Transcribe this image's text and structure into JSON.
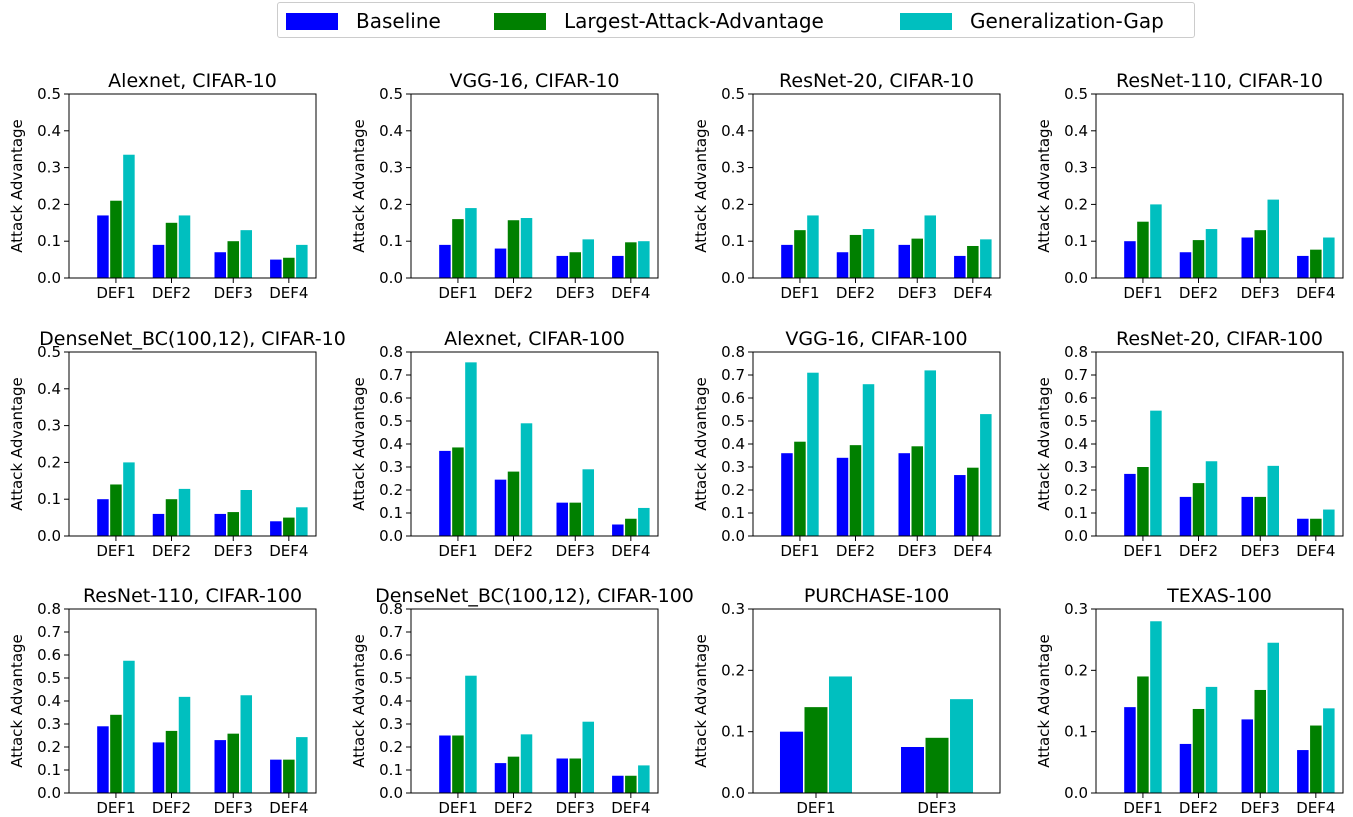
{
  "legend": {
    "items": [
      {
        "label": "Baseline",
        "color": "#0000ff"
      },
      {
        "label": "Largest-Attack-Advantage",
        "color": "#008000"
      },
      {
        "label": "Generalization-Gap",
        "color": "#00bfbf"
      }
    ]
  },
  "chart_data": [
    {
      "type": "bar",
      "title": "Alexnet, CIFAR-10",
      "ylabel": "Attack Advantage",
      "ylim": [
        0,
        0.5
      ],
      "yticks": [
        "0.0",
        "0.1",
        "0.2",
        "0.3",
        "0.4",
        "0.5"
      ],
      "categories": [
        "DEF1",
        "DEF2",
        "DEF3",
        "DEF4"
      ],
      "series": [
        {
          "name": "Baseline",
          "values": [
            0.17,
            0.09,
            0.07,
            0.05
          ]
        },
        {
          "name": "Largest-Attack-Advantage",
          "values": [
            0.21,
            0.15,
            0.1,
            0.055
          ]
        },
        {
          "name": "Generalization-Gap",
          "values": [
            0.335,
            0.17,
            0.13,
            0.09
          ]
        }
      ]
    },
    {
      "type": "bar",
      "title": "VGG-16, CIFAR-10",
      "ylabel": "Attack Advantage",
      "ylim": [
        0,
        0.5
      ],
      "yticks": [
        "0.0",
        "0.1",
        "0.2",
        "0.3",
        "0.4",
        "0.5"
      ],
      "categories": [
        "DEF1",
        "DEF2",
        "DEF3",
        "DEF4"
      ],
      "series": [
        {
          "name": "Baseline",
          "values": [
            0.09,
            0.08,
            0.06,
            0.06
          ]
        },
        {
          "name": "Largest-Attack-Advantage",
          "values": [
            0.16,
            0.157,
            0.07,
            0.097
          ]
        },
        {
          "name": "Generalization-Gap",
          "values": [
            0.19,
            0.163,
            0.105,
            0.1
          ]
        }
      ]
    },
    {
      "type": "bar",
      "title": "ResNet-20, CIFAR-10",
      "ylabel": "Attack Advantage",
      "ylim": [
        0,
        0.5
      ],
      "yticks": [
        "0.0",
        "0.1",
        "0.2",
        "0.3",
        "0.4",
        "0.5"
      ],
      "categories": [
        "DEF1",
        "DEF2",
        "DEF3",
        "DEF4"
      ],
      "series": [
        {
          "name": "Baseline",
          "values": [
            0.09,
            0.07,
            0.09,
            0.06
          ]
        },
        {
          "name": "Largest-Attack-Advantage",
          "values": [
            0.13,
            0.117,
            0.107,
            0.087
          ]
        },
        {
          "name": "Generalization-Gap",
          "values": [
            0.17,
            0.133,
            0.17,
            0.105
          ]
        }
      ]
    },
    {
      "type": "bar",
      "title": "ResNet-110, CIFAR-10",
      "ylabel": "Attack Advantage",
      "ylim": [
        0,
        0.5
      ],
      "yticks": [
        "0.0",
        "0.1",
        "0.2",
        "0.3",
        "0.4",
        "0.5"
      ],
      "categories": [
        "DEF1",
        "DEF2",
        "DEF3",
        "DEF4"
      ],
      "series": [
        {
          "name": "Baseline",
          "values": [
            0.1,
            0.07,
            0.11,
            0.06
          ]
        },
        {
          "name": "Largest-Attack-Advantage",
          "values": [
            0.153,
            0.103,
            0.13,
            0.077
          ]
        },
        {
          "name": "Generalization-Gap",
          "values": [
            0.2,
            0.133,
            0.213,
            0.11
          ]
        }
      ]
    },
    {
      "type": "bar",
      "title": "DenseNet_BC(100,12), CIFAR-10",
      "ylabel": "Attack Advantage",
      "ylim": [
        0,
        0.5
      ],
      "yticks": [
        "0.0",
        "0.1",
        "0.2",
        "0.3",
        "0.4",
        "0.5"
      ],
      "categories": [
        "DEF1",
        "DEF2",
        "DEF3",
        "DEF4"
      ],
      "series": [
        {
          "name": "Baseline",
          "values": [
            0.1,
            0.06,
            0.06,
            0.04
          ]
        },
        {
          "name": "Largest-Attack-Advantage",
          "values": [
            0.14,
            0.1,
            0.065,
            0.05
          ]
        },
        {
          "name": "Generalization-Gap",
          "values": [
            0.2,
            0.128,
            0.125,
            0.078
          ]
        }
      ]
    },
    {
      "type": "bar",
      "title": "Alexnet, CIFAR-100",
      "ylabel": "Attack Advantage",
      "ylim": [
        0,
        0.8
      ],
      "yticks": [
        "0.0",
        "0.1",
        "0.2",
        "0.3",
        "0.4",
        "0.5",
        "0.6",
        "0.7",
        "0.8"
      ],
      "categories": [
        "DEF1",
        "DEF2",
        "DEF3",
        "DEF4"
      ],
      "series": [
        {
          "name": "Baseline",
          "values": [
            0.37,
            0.245,
            0.145,
            0.05
          ]
        },
        {
          "name": "Largest-Attack-Advantage",
          "values": [
            0.385,
            0.28,
            0.145,
            0.075
          ]
        },
        {
          "name": "Generalization-Gap",
          "values": [
            0.755,
            0.49,
            0.29,
            0.122
          ]
        }
      ]
    },
    {
      "type": "bar",
      "title": "VGG-16, CIFAR-100",
      "ylabel": "Attack Advantage",
      "ylim": [
        0,
        0.8
      ],
      "yticks": [
        "0.0",
        "0.1",
        "0.2",
        "0.3",
        "0.4",
        "0.5",
        "0.6",
        "0.7",
        "0.8"
      ],
      "categories": [
        "DEF1",
        "DEF2",
        "DEF3",
        "DEF4"
      ],
      "series": [
        {
          "name": "Baseline",
          "values": [
            0.36,
            0.34,
            0.36,
            0.265
          ]
        },
        {
          "name": "Largest-Attack-Advantage",
          "values": [
            0.41,
            0.395,
            0.39,
            0.297
          ]
        },
        {
          "name": "Generalization-Gap",
          "values": [
            0.71,
            0.66,
            0.72,
            0.53
          ]
        }
      ]
    },
    {
      "type": "bar",
      "title": "ResNet-20, CIFAR-100",
      "ylabel": "Attack Advantage",
      "ylim": [
        0,
        0.8
      ],
      "yticks": [
        "0.0",
        "0.1",
        "0.2",
        "0.3",
        "0.4",
        "0.5",
        "0.6",
        "0.7",
        "0.8"
      ],
      "categories": [
        "DEF1",
        "DEF2",
        "DEF3",
        "DEF4"
      ],
      "series": [
        {
          "name": "Baseline",
          "values": [
            0.27,
            0.17,
            0.17,
            0.075
          ]
        },
        {
          "name": "Largest-Attack-Advantage",
          "values": [
            0.3,
            0.23,
            0.17,
            0.075
          ]
        },
        {
          "name": "Generalization-Gap",
          "values": [
            0.545,
            0.325,
            0.305,
            0.115
          ]
        }
      ]
    },
    {
      "type": "bar",
      "title": "ResNet-110, CIFAR-100",
      "ylabel": "Attack Advantage",
      "ylim": [
        0,
        0.8
      ],
      "yticks": [
        "0.0",
        "0.1",
        "0.2",
        "0.3",
        "0.4",
        "0.5",
        "0.6",
        "0.7",
        "0.8"
      ],
      "categories": [
        "DEF1",
        "DEF2",
        "DEF3",
        "DEF4"
      ],
      "series": [
        {
          "name": "Baseline",
          "values": [
            0.29,
            0.22,
            0.23,
            0.145
          ]
        },
        {
          "name": "Largest-Attack-Advantage",
          "values": [
            0.34,
            0.27,
            0.258,
            0.145
          ]
        },
        {
          "name": "Generalization-Gap",
          "values": [
            0.575,
            0.418,
            0.425,
            0.243
          ]
        }
      ]
    },
    {
      "type": "bar",
      "title": "DenseNet_BC(100,12), CIFAR-100",
      "ylabel": "Attack Advantage",
      "ylim": [
        0,
        0.8
      ],
      "yticks": [
        "0.0",
        "0.1",
        "0.2",
        "0.3",
        "0.4",
        "0.5",
        "0.6",
        "0.7",
        "0.8"
      ],
      "categories": [
        "DEF1",
        "DEF2",
        "DEF3",
        "DEF4"
      ],
      "series": [
        {
          "name": "Baseline",
          "values": [
            0.25,
            0.13,
            0.15,
            0.075
          ]
        },
        {
          "name": "Largest-Attack-Advantage",
          "values": [
            0.25,
            0.158,
            0.15,
            0.075
          ]
        },
        {
          "name": "Generalization-Gap",
          "values": [
            0.51,
            0.255,
            0.31,
            0.12
          ]
        }
      ]
    },
    {
      "type": "bar",
      "title": "PURCHASE-100",
      "ylabel": "Attack Advantage",
      "ylim": [
        0,
        0.3
      ],
      "yticks": [
        "0.0",
        "0.1",
        "0.2",
        "0.3"
      ],
      "categories": [
        "DEF1",
        "DEF3"
      ],
      "series": [
        {
          "name": "Baseline",
          "values": [
            0.1,
            0.075
          ]
        },
        {
          "name": "Largest-Attack-Advantage",
          "values": [
            0.14,
            0.09
          ]
        },
        {
          "name": "Generalization-Gap",
          "values": [
            0.19,
            0.153
          ]
        }
      ]
    },
    {
      "type": "bar",
      "title": "TEXAS-100",
      "ylabel": "Attack Advantage",
      "ylim": [
        0,
        0.3
      ],
      "yticks": [
        "0.0",
        "0.1",
        "0.2",
        "0.3"
      ],
      "categories": [
        "DEF1",
        "DEF2",
        "DEF3",
        "DEF4"
      ],
      "series": [
        {
          "name": "Baseline",
          "values": [
            0.14,
            0.08,
            0.12,
            0.07
          ]
        },
        {
          "name": "Largest-Attack-Advantage",
          "values": [
            0.19,
            0.137,
            0.168,
            0.11
          ]
        },
        {
          "name": "Generalization-Gap",
          "values": [
            0.28,
            0.173,
            0.245,
            0.138
          ]
        }
      ]
    }
  ]
}
